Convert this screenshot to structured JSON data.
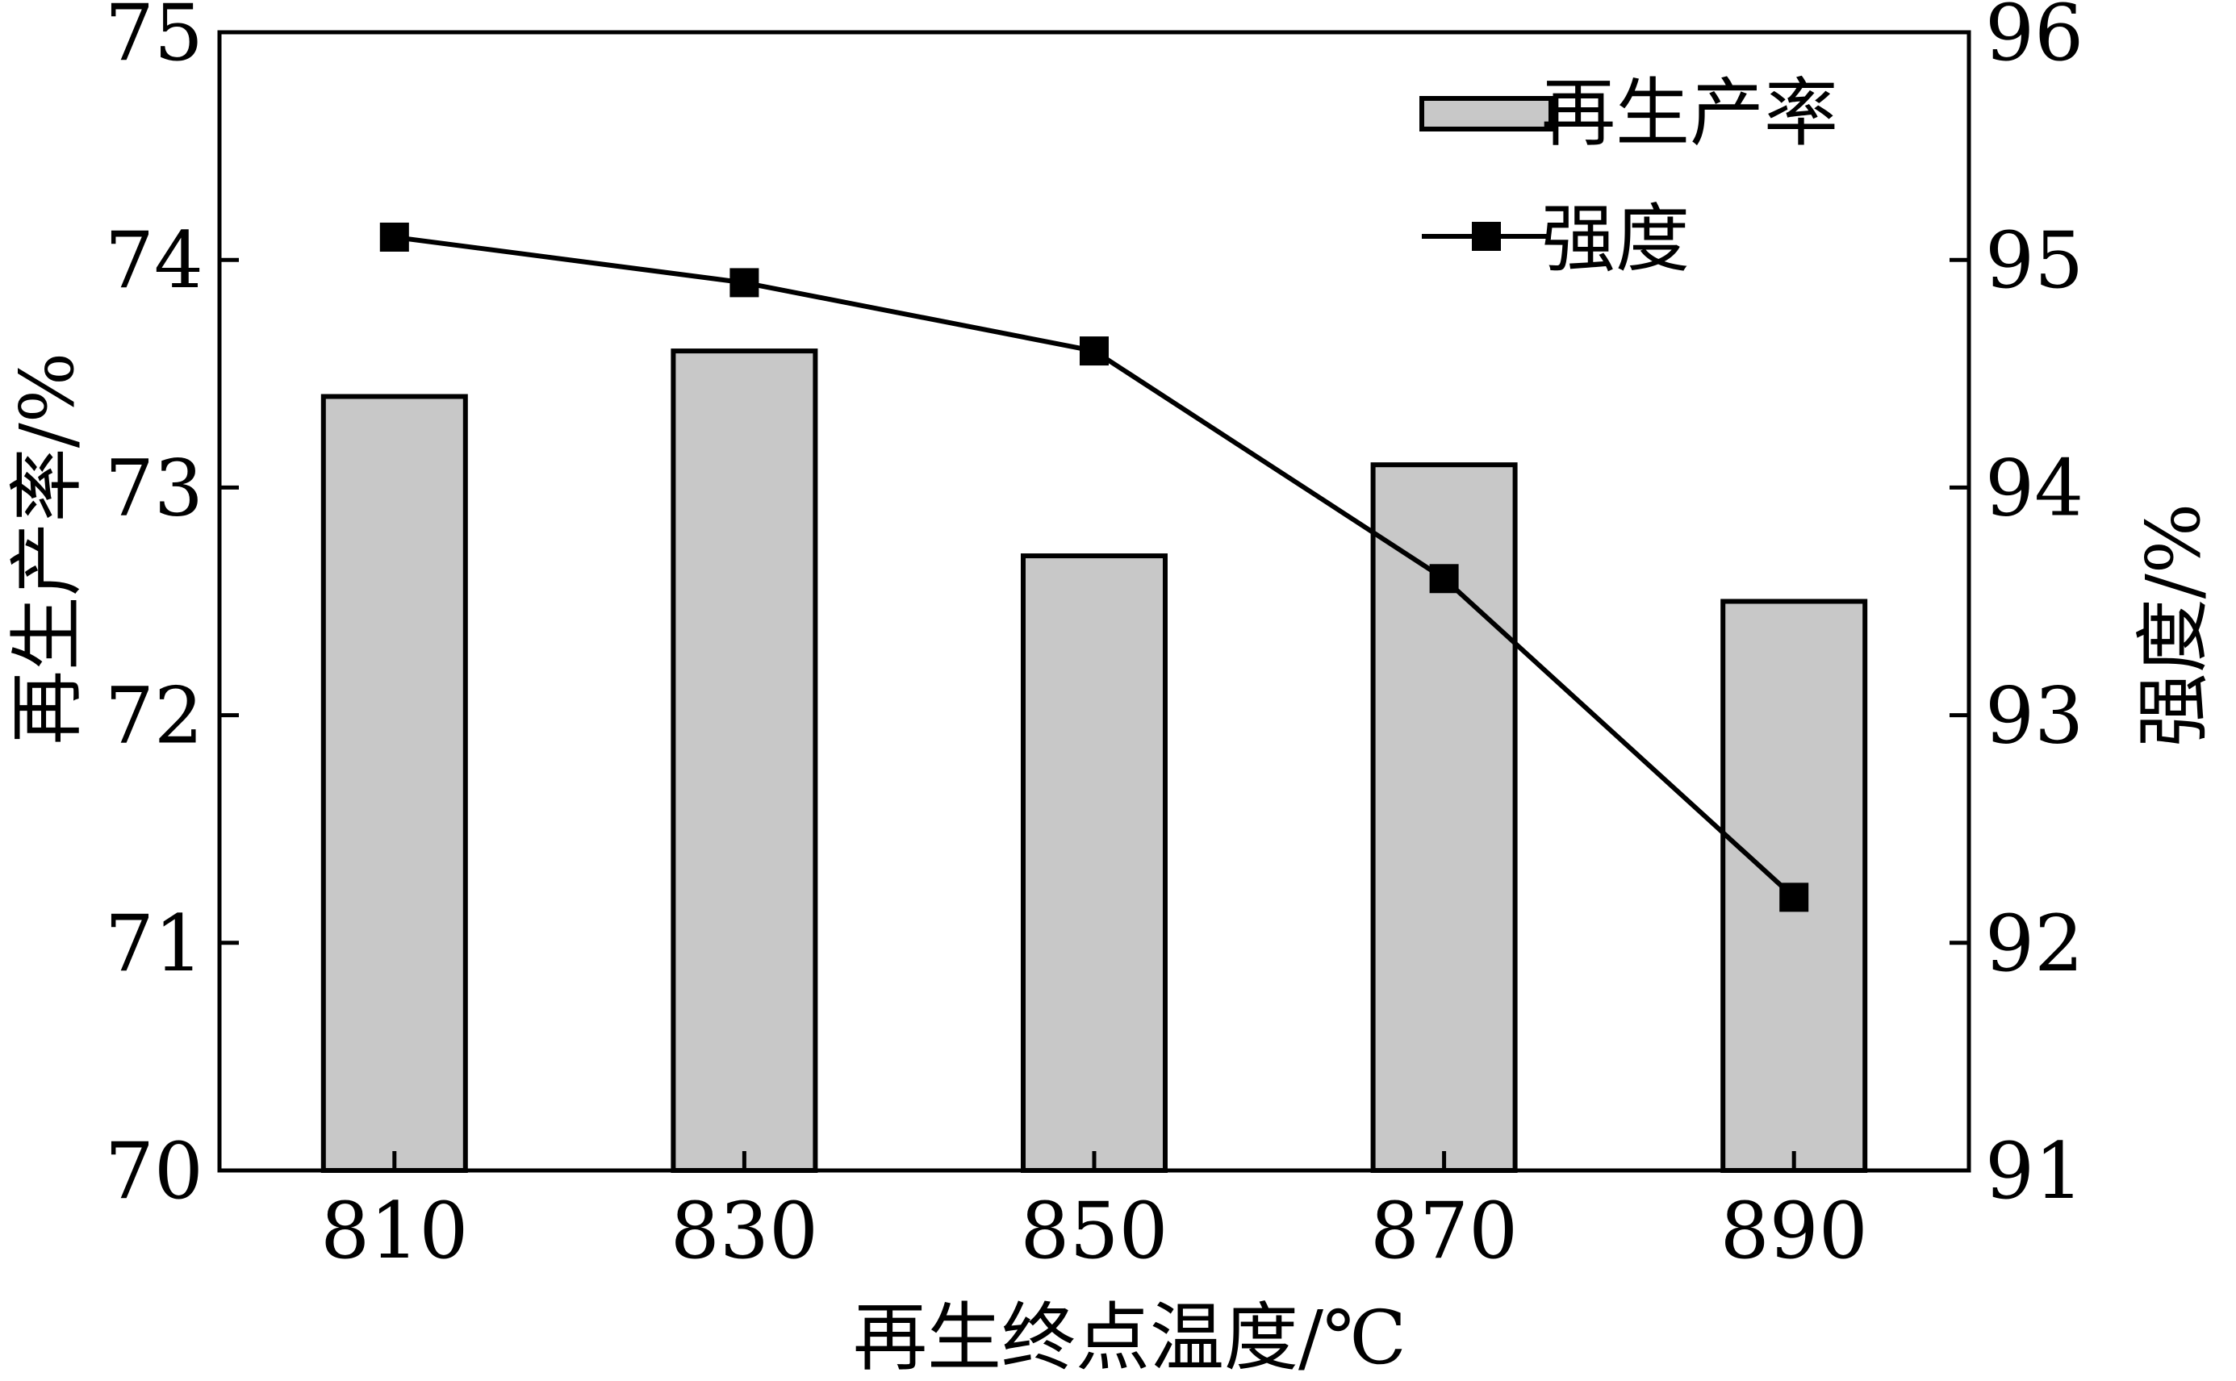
{
  "chart_data": {
    "type": "bar",
    "categories": [
      "810",
      "830",
      "850",
      "870",
      "890"
    ],
    "series": [
      {
        "name": "再生产率",
        "kind": "bar",
        "axis": "left",
        "values": [
          73.4,
          73.6,
          72.7,
          73.1,
          72.5
        ]
      },
      {
        "name": "强度",
        "kind": "line",
        "axis": "right",
        "marker": "square",
        "values": [
          95.1,
          94.9,
          94.6,
          93.6,
          92.2
        ]
      }
    ],
    "xlabel": "再生终点温度/℃",
    "ylabel_left": "再生产率/%",
    "ylabel_right": "强度/%",
    "ylim_left": [
      70,
      75
    ],
    "ylim_right": [
      91,
      96
    ],
    "yticks_left": [
      "70",
      "71",
      "72",
      "73",
      "74",
      "75"
    ],
    "yticks_right": [
      "91",
      "92",
      "93",
      "94",
      "95",
      "96"
    ],
    "grid": false,
    "legend": "top-right",
    "colors": {
      "bar_fill": "#c8c8c8",
      "bar_stroke": "#000000",
      "line": "#000000",
      "marker": "#000000",
      "axis": "#000000"
    }
  }
}
